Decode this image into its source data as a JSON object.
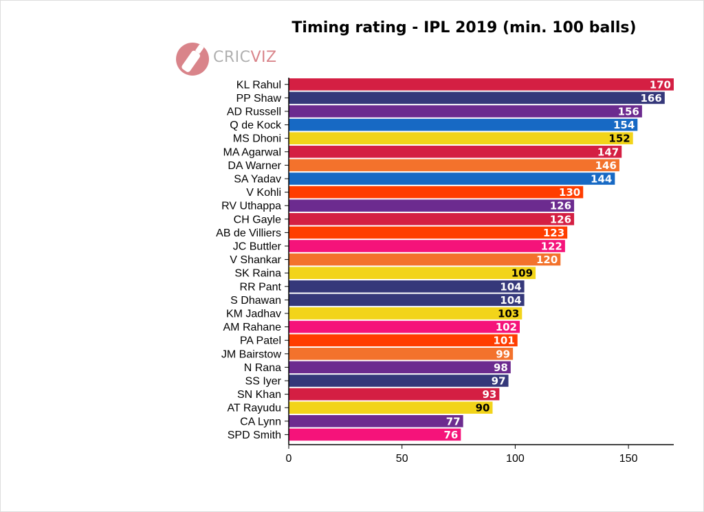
{
  "chart_data": {
    "type": "bar",
    "orientation": "horizontal",
    "title": "Timing rating - IPL 2019 (min. 100 balls)",
    "xlabel": "",
    "ylabel": "",
    "xlim": [
      0,
      170
    ],
    "xticks": [
      0,
      50,
      100,
      150
    ],
    "grid": false,
    "categories": [
      "KL Rahul",
      "PP Shaw",
      "AD Russell",
      "Q de Kock",
      "MS Dhoni",
      "MA Agarwal",
      "DA Warner",
      "SA Yadav",
      "V Kohli",
      "RV Uthappa",
      "CH Gayle",
      "AB de Villiers",
      "JC Buttler",
      "V Shankar",
      "SK Raina",
      "RR Pant",
      "S Dhawan",
      "KM Jadhav",
      "AM Rahane",
      "PA Patel",
      "JM Bairstow",
      "N Rana",
      "SS Iyer",
      "SN Khan",
      "AT Rayudu",
      "CA Lynn",
      "SPD Smith"
    ],
    "values": [
      170,
      166,
      156,
      154,
      152,
      147,
      146,
      144,
      130,
      126,
      126,
      123,
      122,
      120,
      109,
      104,
      104,
      103,
      102,
      101,
      99,
      98,
      97,
      93,
      90,
      77,
      76
    ],
    "colors": [
      "#d41f43",
      "#35387a",
      "#6c2b8f",
      "#1769c4",
      "#f2d41a",
      "#d41f43",
      "#f3722c",
      "#1769c4",
      "#ff3d00",
      "#6c2b8f",
      "#d41f43",
      "#ff3d00",
      "#f5137a",
      "#f3722c",
      "#f2d41a",
      "#35387a",
      "#35387a",
      "#f2d41a",
      "#f5137a",
      "#ff3d00",
      "#f3722c",
      "#6c2b8f",
      "#35387a",
      "#d41f43",
      "#f2d41a",
      "#6c2b8f",
      "#f5137a"
    ],
    "label_colors": [
      "#ffffff",
      "#ffffff",
      "#ffffff",
      "#ffffff",
      "#000000",
      "#ffffff",
      "#ffffff",
      "#ffffff",
      "#ffffff",
      "#ffffff",
      "#ffffff",
      "#ffffff",
      "#ffffff",
      "#ffffff",
      "#000000",
      "#ffffff",
      "#ffffff",
      "#000000",
      "#ffffff",
      "#ffffff",
      "#ffffff",
      "#ffffff",
      "#ffffff",
      "#ffffff",
      "#000000",
      "#ffffff",
      "#ffffff"
    ]
  },
  "logo": {
    "text_part1": "CRIC",
    "text_part2": "VIZ"
  }
}
